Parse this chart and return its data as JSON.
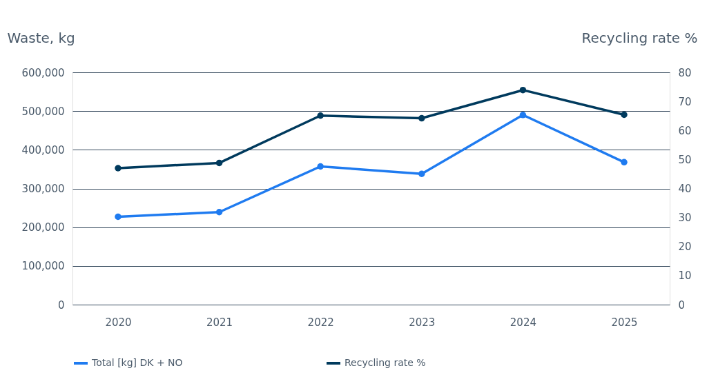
{
  "chart_data": {
    "type": "line",
    "ylabel": "Waste, kg",
    "y2label": "Recycling rate %",
    "categories": [
      "2020",
      "2021",
      "2022",
      "2023",
      "2024",
      "2025"
    ],
    "series": [
      {
        "name": "Total [kg] DK + NO",
        "color": "#1f7bf0",
        "values": [
          227000,
          239000,
          357000,
          338000,
          490000,
          368000
        ]
      },
      {
        "name": "Recycling rate %",
        "color": "#003a5d",
        "axis": "y2",
        "values": [
          47,
          48.8,
          65.1,
          64.2,
          73.9,
          65.4
        ]
      }
    ],
    "ylim": [
      0,
      600000
    ],
    "yticks": [
      {
        "value": 0,
        "label": "0"
      },
      {
        "value": 100000,
        "label": "100,000"
      },
      {
        "value": 200000,
        "label": "200,000"
      },
      {
        "value": 300000,
        "label": "300,000"
      },
      {
        "value": 400000,
        "label": "400,000"
      },
      {
        "value": 500000,
        "label": "500,000"
      },
      {
        "value": 600000,
        "label": "600,000"
      }
    ],
    "y2lim": [
      0,
      80
    ],
    "y2ticks": [
      0,
      10,
      20,
      30,
      40,
      50,
      60,
      70,
      80
    ],
    "grid": "y",
    "legend": "bottom",
    "marker": "circle",
    "line_style": "solid"
  }
}
